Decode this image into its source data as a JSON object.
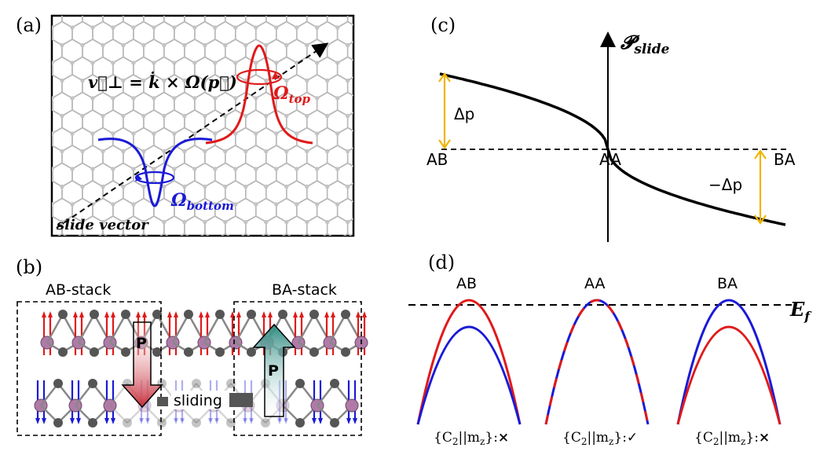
{
  "panels": {
    "a": {
      "label": "(a)",
      "formula": "v⃗⊥ = k̇ × Ω(p⃗)",
      "omega_top": "Ω",
      "omega_top_sub": "top",
      "omega_bottom": "Ω",
      "omega_bottom_sub": "bottom",
      "slide_vector": "slide vector",
      "colors": {
        "top": "#e01a1a",
        "bottom": "#1a1ad6",
        "lattice": "#b8b8b8"
      }
    },
    "b": {
      "label": "(b)",
      "ab_stack": "AB-stack",
      "ba_stack": "BA-stack",
      "sliding": "sliding",
      "polarization": "P",
      "colors": {
        "arrow_ab": "#c8303c",
        "arrow_ba": "#2e8c82",
        "atom_metal": "#b07aa8",
        "atom_x": "#555555"
      }
    },
    "c": {
      "label": "(c)",
      "axis_label": "𝓟",
      "axis_sub": "slide",
      "x_labels": [
        "AB",
        "AA",
        "BA"
      ],
      "delta_p": "Δp",
      "neg_delta_p": "−Δp",
      "colors": {
        "curve": "#000000",
        "bracket": "#f0b400"
      }
    },
    "d": {
      "label": "(d)",
      "fermi": "E",
      "fermi_sub": "f",
      "cases": [
        {
          "title": "AB",
          "symmetry_prefix": "{C",
          "symmetry_sub": "2",
          "symmetry_mid": "||m",
          "symmetry_sub2": "z",
          "symmetry_suffix": "}:",
          "mark": "×"
        },
        {
          "title": "AA",
          "symmetry_prefix": "{C",
          "symmetry_sub": "2",
          "symmetry_mid": "||m",
          "symmetry_sub2": "z",
          "symmetry_suffix": "}:",
          "mark": "✓"
        },
        {
          "title": "BA",
          "symmetry_prefix": "{C",
          "symmetry_sub": "2",
          "symmetry_mid": "||m",
          "symmetry_sub2": "z",
          "symmetry_suffix": "}:",
          "mark": "×"
        }
      ],
      "colors": {
        "red": "#e01a1a",
        "blue": "#1a1ad6"
      }
    }
  }
}
